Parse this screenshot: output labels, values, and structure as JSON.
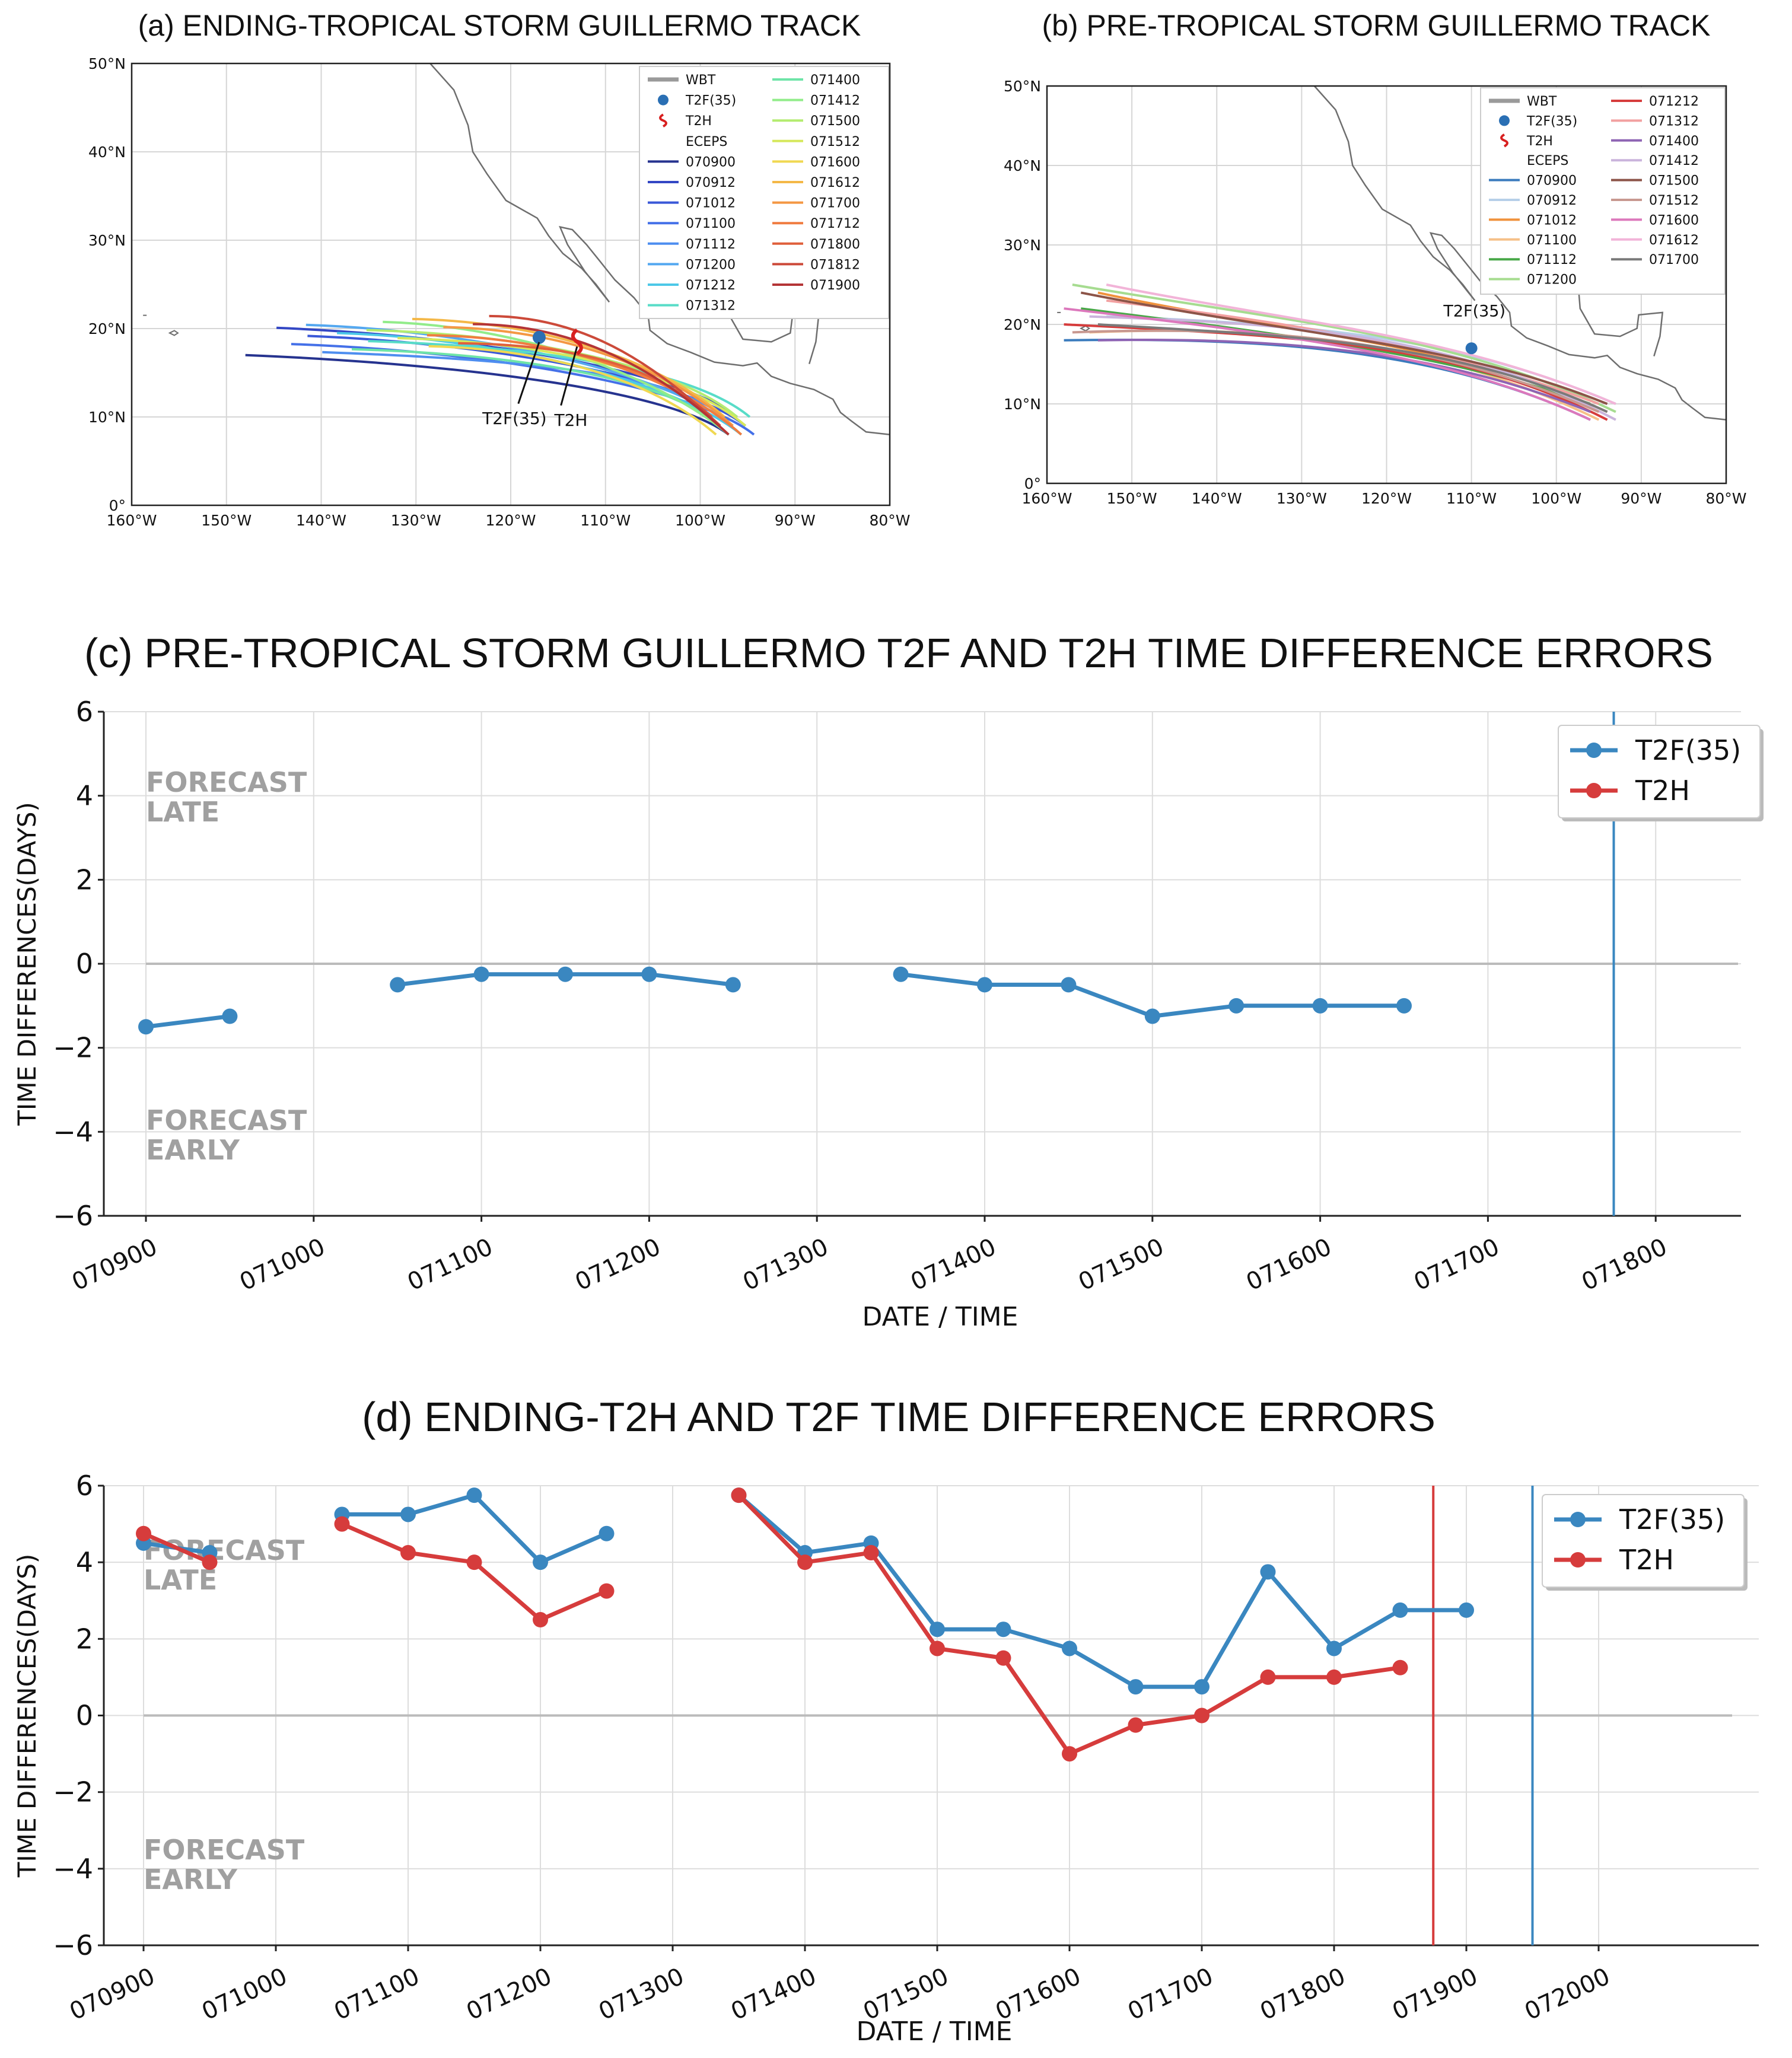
{
  "colors": {
    "t2f": "#3a87c0",
    "t2h": "#d63c3c",
    "grid": "#dddddd",
    "zero": "#bbbbbb",
    "annot": "#a0a0a0"
  },
  "chart_data": [
    {
      "id": "a",
      "type": "map",
      "title": "(a) ENDING-TROPICAL STORM GUILLERMO TRACK",
      "xlim": [
        -160,
        -80
      ],
      "ylim": [
        0,
        50
      ],
      "x_ticks": [
        "160°W",
        "150°W",
        "140°W",
        "130°W",
        "120°W",
        "110°W",
        "100°W",
        "90°W",
        "80°W"
      ],
      "y_ticks": [
        "0°",
        "10°N",
        "20°N",
        "30°N",
        "40°N",
        "50°N"
      ],
      "legend": [
        "WBT",
        "T2F(35)",
        "T2H",
        "ECEPS",
        "070900",
        "070912",
        "071012",
        "071100",
        "071112",
        "071200",
        "071212",
        "071312",
        "071400",
        "071412",
        "071500",
        "071512",
        "071600",
        "071612",
        "071700",
        "071712",
        "071800",
        "071812",
        "071900"
      ],
      "labels": [
        "T2F(35)",
        "T2H"
      ]
    },
    {
      "id": "b",
      "type": "map",
      "title": "(b) PRE-TROPICAL STORM GUILLERMO TRACK",
      "xlim": [
        -160,
        -80
      ],
      "ylim": [
        0,
        50
      ],
      "x_ticks": [
        "160°W",
        "150°W",
        "140°W",
        "130°W",
        "120°W",
        "110°W",
        "100°W",
        "90°W",
        "80°W"
      ],
      "y_ticks": [
        "0°",
        "10°N",
        "20°N",
        "30°N",
        "40°N",
        "50°N"
      ],
      "legend": [
        "WBT",
        "T2F(35)",
        "T2H",
        "ECEPS",
        "070900",
        "070912",
        "071012",
        "071100",
        "071112",
        "071200",
        "071212",
        "071312",
        "071400",
        "071412",
        "071500",
        "071512",
        "071600",
        "071612",
        "071700"
      ],
      "labels": [
        "T2F(35)"
      ]
    },
    {
      "id": "c",
      "type": "line",
      "title": "(c) PRE-TROPICAL STORM GUILLERMO T2F AND T2H TIME DIFFERENCE ERRORS",
      "xlabel": "DATE / TIME",
      "ylabel": "TIME DIFFERENCES(DAYS)",
      "ylim": [
        -6,
        6
      ],
      "y_ticks": [
        -6,
        -4,
        -2,
        0,
        2,
        4,
        6
      ],
      "x_tick_labels": [
        "070900",
        "071000",
        "071100",
        "071200",
        "071300",
        "071400",
        "071500",
        "071600",
        "071700",
        "071800"
      ],
      "annotations": {
        "late": [
          "FORECAST",
          "LATE"
        ],
        "early": [
          "FORECAST",
          "EARLY"
        ]
      },
      "vlines": [
        {
          "x": 8.75,
          "series": "T2F(35)"
        }
      ],
      "series": [
        {
          "name": "T2F(35)",
          "color": "#3a87c0",
          "segments": [
            {
              "x": [
                0,
                0.5
              ],
              "y": [
                -1.5,
                -1.25
              ]
            },
            {
              "x": [
                1.5,
                2,
                2.5,
                3,
                3.5
              ],
              "y": [
                -0.5,
                -0.25,
                -0.25,
                -0.25,
                -0.5
              ]
            },
            {
              "x": [
                4.5,
                5,
                5.5,
                6,
                6.5,
                7,
                7.5
              ],
              "y": [
                -0.25,
                -0.5,
                -0.5,
                -1.25,
                -1.0,
                -1.0,
                -1.0
              ]
            }
          ]
        },
        {
          "name": "T2H",
          "color": "#d63c3c",
          "segments": []
        }
      ]
    },
    {
      "id": "d",
      "type": "line",
      "title": "(d) ENDING-T2H AND T2F TIME DIFFERENCE ERRORS",
      "xlabel": "DATE / TIME",
      "ylabel": "TIME DIFFERENCES(DAYS)",
      "ylim": [
        -6,
        6
      ],
      "y_ticks": [
        -6,
        -4,
        -2,
        0,
        2,
        4,
        6
      ],
      "x_tick_labels": [
        "070900",
        "071000",
        "071100",
        "071200",
        "071300",
        "071400",
        "071500",
        "071600",
        "071700",
        "071800",
        "071900",
        "072000"
      ],
      "annotations": {
        "late": [
          "FORECAST",
          "LATE"
        ],
        "early": [
          "FORECAST",
          "EARLY"
        ]
      },
      "vlines": [
        {
          "x": 9.75,
          "series": "T2H"
        },
        {
          "x": 10.5,
          "series": "T2F(35)"
        }
      ],
      "series": [
        {
          "name": "T2F(35)",
          "color": "#3a87c0",
          "segments": [
            {
              "x": [
                0,
                0.5
              ],
              "y": [
                4.5,
                4.25
              ]
            },
            {
              "x": [
                1.5,
                2,
                2.5,
                3,
                3.5
              ],
              "y": [
                5.25,
                5.25,
                5.75,
                4.0,
                4.75
              ]
            },
            {
              "x": [
                4.5,
                5,
                5.5,
                6,
                6.5,
                7,
                7.5,
                8,
                8.5,
                9,
                9.5,
                10
              ],
              "y": [
                5.75,
                4.25,
                4.5,
                2.25,
                2.25,
                1.75,
                0.75,
                0.75,
                3.75,
                1.75,
                2.75,
                2.75
              ]
            }
          ]
        },
        {
          "name": "T2H",
          "color": "#d63c3c",
          "segments": [
            {
              "x": [
                0,
                0.5
              ],
              "y": [
                4.75,
                4.0
              ]
            },
            {
              "x": [
                1.5,
                2,
                2.5,
                3,
                3.5
              ],
              "y": [
                5.0,
                4.25,
                4.0,
                2.5,
                3.25
              ]
            },
            {
              "x": [
                4.5,
                5,
                5.5,
                6,
                6.5,
                7,
                7.5,
                8,
                8.5,
                9,
                9.5
              ],
              "y": [
                5.75,
                4.0,
                4.25,
                1.75,
                1.5,
                -1.0,
                -0.25,
                0.0,
                1.0,
                1.0,
                1.25
              ]
            }
          ]
        }
      ]
    }
  ]
}
